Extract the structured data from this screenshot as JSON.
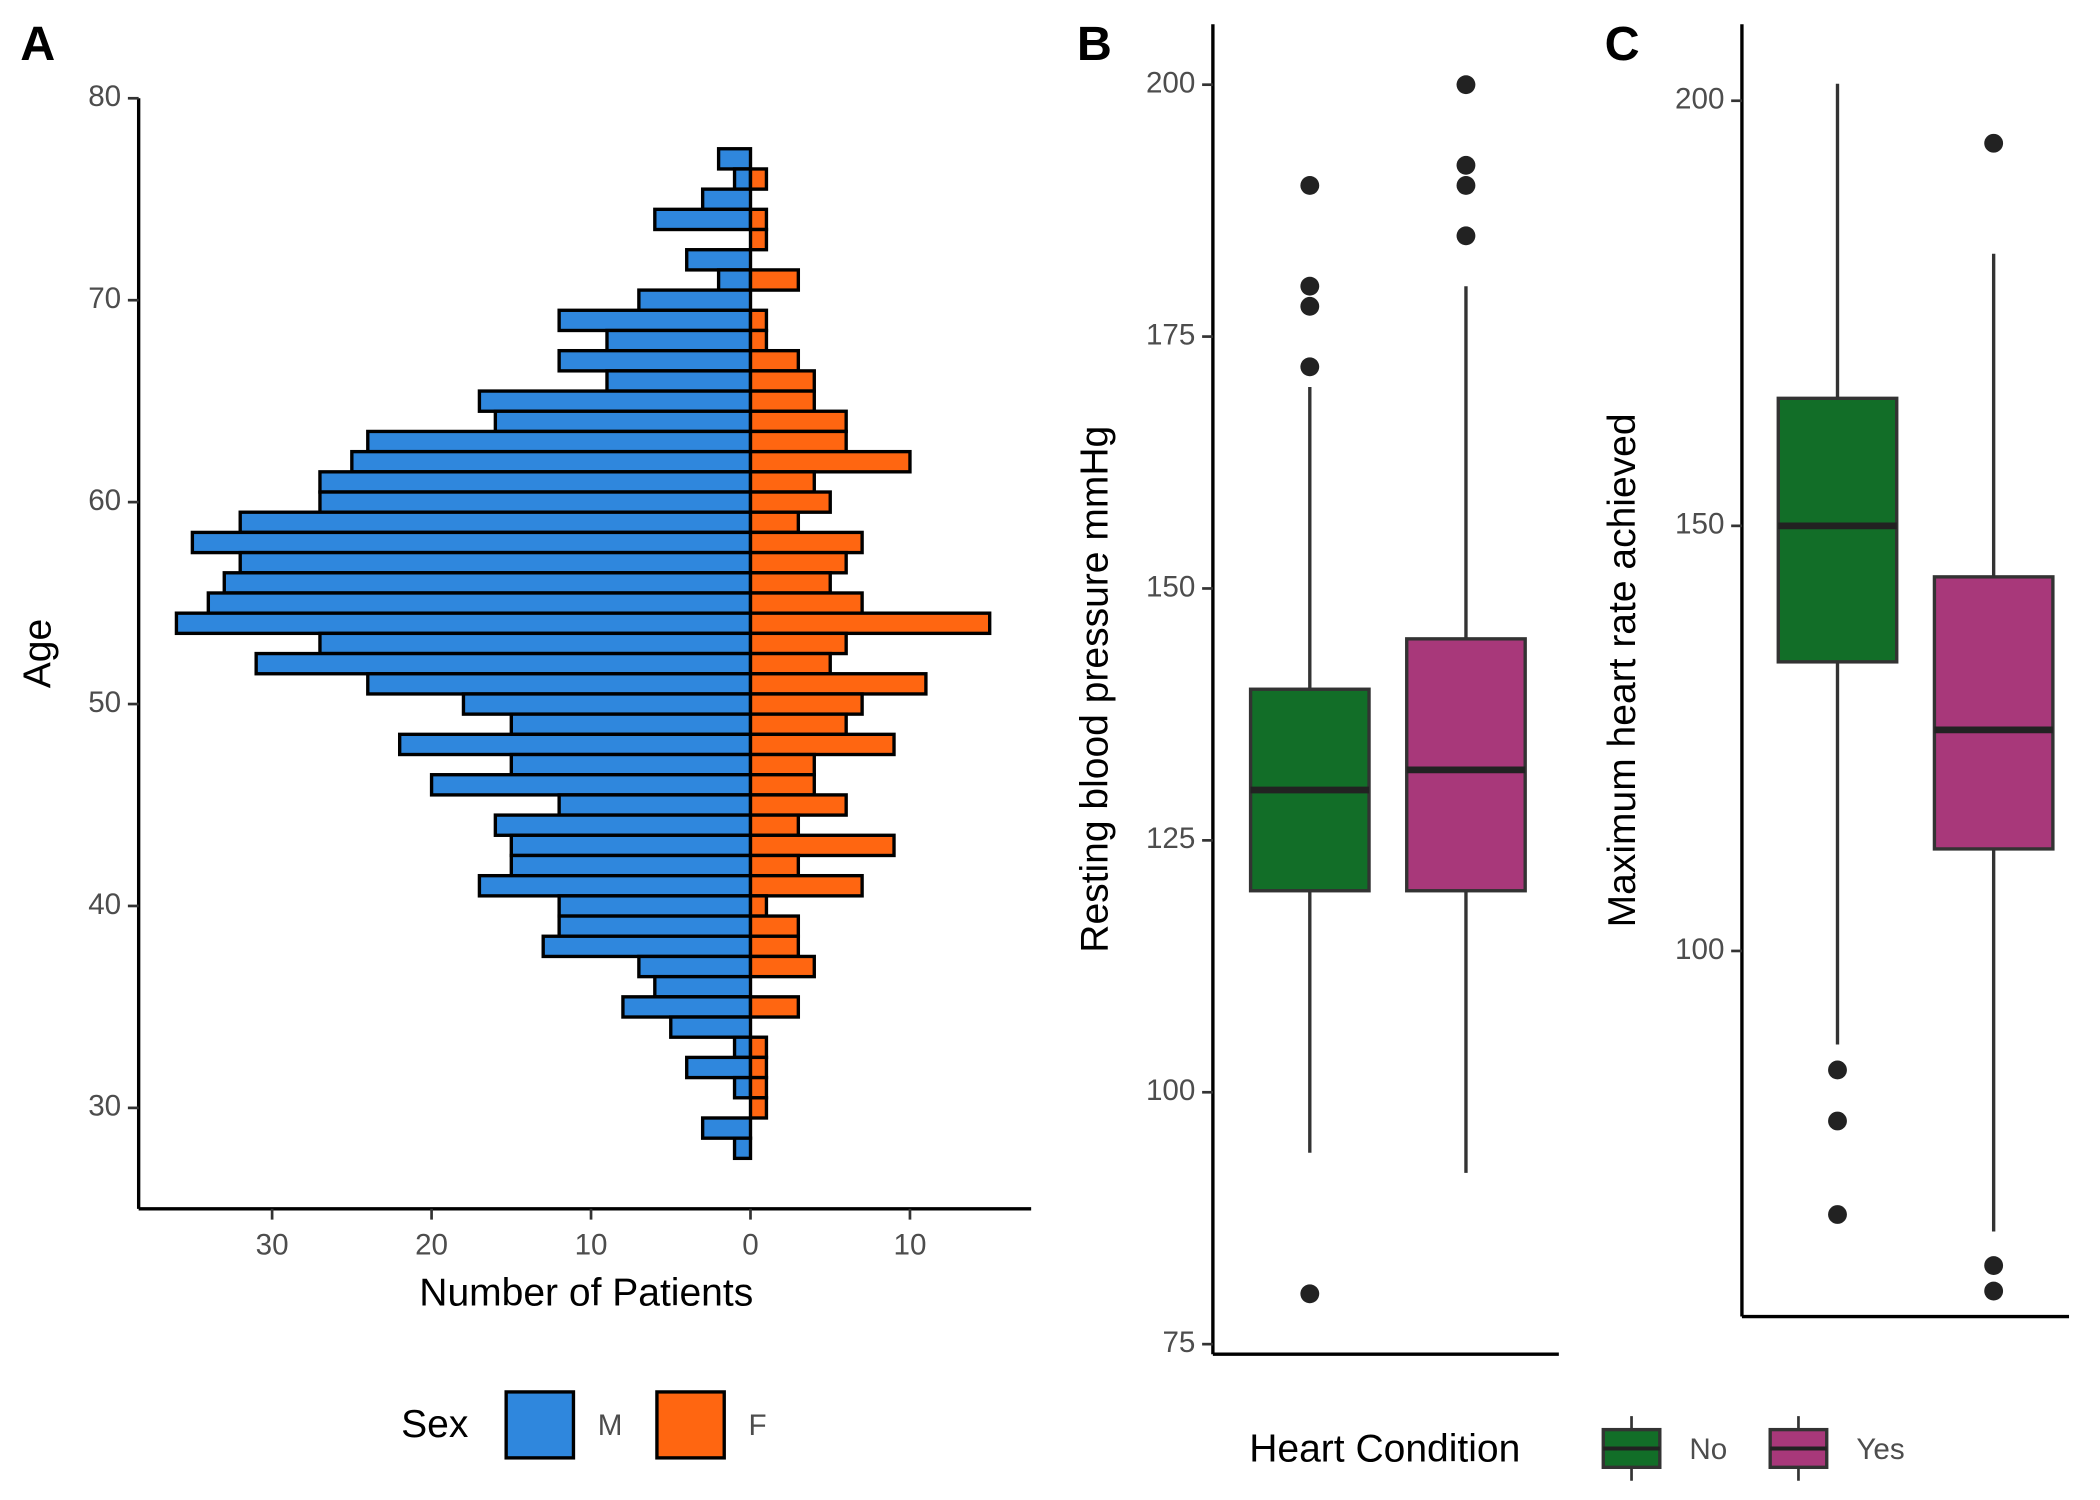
{
  "chart_data": [
    {
      "type": "pyramid",
      "tag": "A",
      "xlabel": "Number of Patients",
      "ylabel": "Age",
      "legend_title": "Sex",
      "y": [
        77,
        76,
        75,
        74,
        73,
        72,
        71,
        70,
        69,
        68,
        67,
        66,
        65,
        64,
        63,
        62,
        61,
        60,
        59,
        58,
        57,
        56,
        55,
        54,
        53,
        52,
        51,
        50,
        49,
        48,
        47,
        46,
        45,
        44,
        43,
        42,
        41,
        40,
        39,
        38,
        37,
        36,
        35,
        34,
        33,
        32,
        31,
        30,
        29,
        28
      ],
      "series": [
        {
          "name": "M",
          "color": "#2f87dd",
          "values": [
            -2,
            -1,
            -3,
            -6,
            0,
            -4,
            -2,
            -7,
            -12,
            -9,
            -12,
            -9,
            -17,
            -16,
            -24,
            -25,
            -27,
            -27,
            -32,
            -35,
            -32,
            -33,
            -34,
            -36,
            -27,
            -31,
            -24,
            -18,
            -15,
            -22,
            -15,
            -20,
            -12,
            -16,
            -15,
            -15,
            -17,
            -12,
            -12,
            -13,
            -7,
            -6,
            -8,
            -5,
            -1,
            -4,
            -1,
            0,
            -3,
            -1
          ]
        },
        {
          "name": "F",
          "color": "#ff6611",
          "values": [
            0,
            1,
            0,
            1,
            1,
            0,
            3,
            0,
            1,
            1,
            3,
            4,
            4,
            6,
            6,
            10,
            4,
            5,
            3,
            7,
            6,
            5,
            7,
            15,
            6,
            5,
            11,
            7,
            6,
            9,
            4,
            4,
            6,
            3,
            9,
            3,
            7,
            1,
            3,
            3,
            4,
            0,
            3,
            0,
            1,
            1,
            1,
            1,
            0,
            0
          ]
        }
      ],
      "xlim": [
        -38.2,
        17.6
      ],
      "xticks": [
        {
          "value": -30,
          "label": "30"
        },
        {
          "value": -20,
          "label": "20"
        },
        {
          "value": -10,
          "label": "10"
        },
        0,
        10
      ],
      "ylim": [
        25,
        80
      ],
      "yticks": [
        30,
        40,
        50,
        60,
        70,
        80
      ]
    },
    {
      "type": "box",
      "tag": "B",
      "ylabel": "Resting blood pressure mmHg",
      "legend_title": "Heart Condition",
      "series": [
        {
          "name": "No",
          "color": "#126e28",
          "whisker_low": 94,
          "q1": 120,
          "median": 130,
          "q3": 140,
          "whisker_high": 170,
          "outliers": [
            190,
            180,
            178,
            172,
            80
          ]
        },
        {
          "name": "Yes",
          "color": "#a8387a",
          "whisker_low": 92,
          "q1": 120,
          "median": 132,
          "q3": 145,
          "whisker_high": 180,
          "outliers": [
            200,
            192,
            190,
            185
          ]
        }
      ],
      "ylim": [
        74,
        206
      ],
      "yticks": [
        75,
        100,
        125,
        150,
        175,
        200
      ]
    },
    {
      "type": "box",
      "tag": "C",
      "ylabel": "Maximum heart rate achieved",
      "series": [
        {
          "color": "#126e28",
          "whisker_low": 89,
          "q1": 134,
          "median": 150,
          "q3": 165,
          "whisker_high": 202,
          "outliers": [
            86,
            80,
            69
          ]
        },
        {
          "color": "#a8387a",
          "whisker_low": 67,
          "q1": 112,
          "median": 126,
          "q3": 144,
          "whisker_high": 182,
          "outliers": [
            195,
            63,
            60
          ]
        }
      ],
      "ylim": [
        57,
        209
      ],
      "yticks": [
        100,
        150,
        200
      ]
    }
  ]
}
